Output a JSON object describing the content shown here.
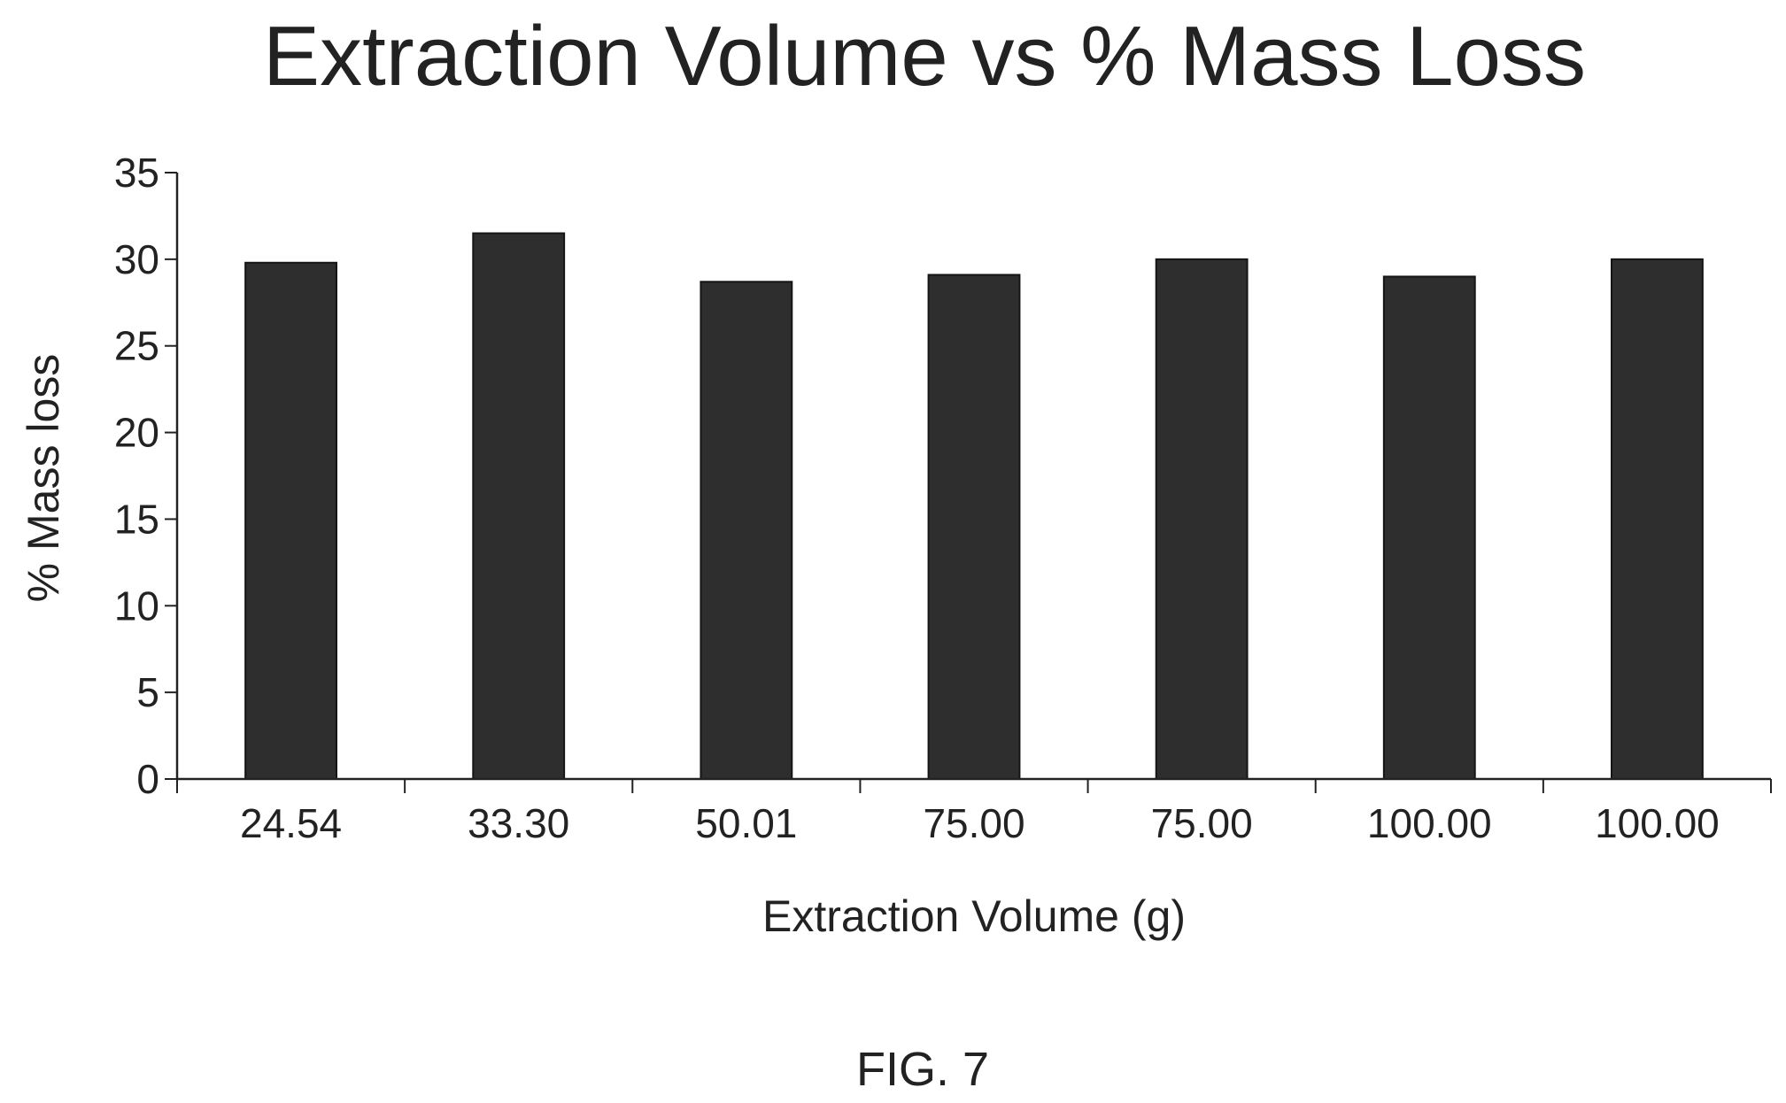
{
  "figure_caption": "FIG. 7",
  "chart_data": {
    "type": "bar",
    "title": "Extraction Volume vs % Mass Loss",
    "xlabel": "Extraction Volume (g)",
    "ylabel": "% Mass loss",
    "categories": [
      "24.54",
      "33.30",
      "50.01",
      "75.00",
      "75.00",
      "100.00",
      "100.00"
    ],
    "values": [
      29.8,
      31.5,
      28.7,
      29.1,
      30.0,
      29.0,
      30.0
    ],
    "ylim": [
      0,
      35
    ],
    "yticks": [
      0,
      5,
      10,
      15,
      20,
      25,
      30,
      35
    ],
    "grid": false,
    "legend": "none",
    "bar_color": "#2e2e2e"
  }
}
